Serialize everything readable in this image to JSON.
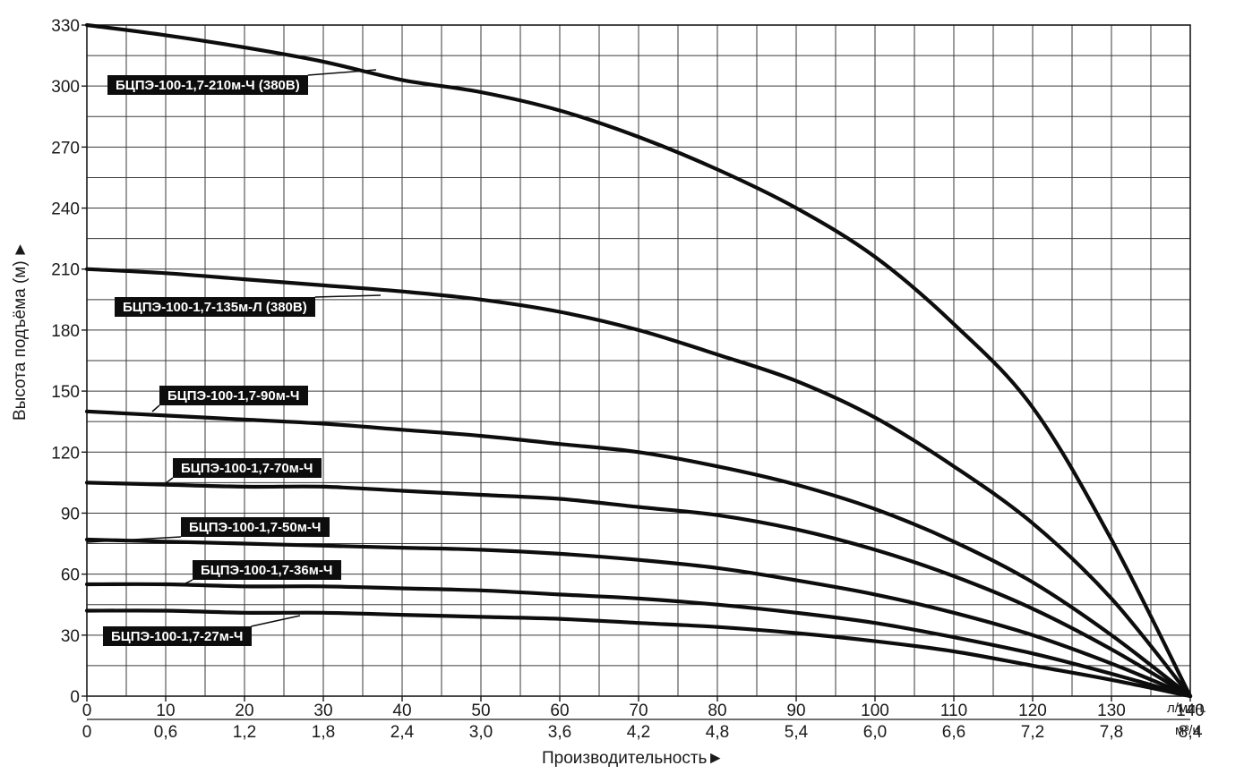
{
  "chart_data": {
    "type": "line",
    "ylabel": "Высота подъёма (м)",
    "xlabel": "Производительность",
    "ylim": [
      0,
      330
    ],
    "yticks": [
      0,
      30,
      60,
      90,
      120,
      150,
      180,
      210,
      240,
      270,
      300,
      330
    ],
    "xlim": [
      0,
      140
    ],
    "xticks": [
      0,
      10,
      20,
      30,
      40,
      50,
      60,
      70,
      80,
      90,
      100,
      110,
      120,
      130,
      140
    ],
    "x_unit": "л/мин.",
    "x2_ticks": [
      "0",
      "0,6",
      "1,2",
      "1,8",
      "2,4",
      "3,0",
      "3,6",
      "4,2",
      "4,8",
      "5,4",
      "6,0",
      "6,6",
      "7,2",
      "7,8",
      "8,4"
    ],
    "x2_unit": "м³/ч.",
    "grid": true,
    "series": [
      {
        "name": "БЦПЭ-100-1,7-210м-Ч (380В)",
        "points": [
          [
            0,
            330
          ],
          [
            10,
            325
          ],
          [
            20,
            319
          ],
          [
            30,
            312
          ],
          [
            40,
            303
          ],
          [
            50,
            297
          ],
          [
            60,
            288
          ],
          [
            70,
            275
          ],
          [
            80,
            259
          ],
          [
            90,
            240
          ],
          [
            100,
            216
          ],
          [
            110,
            183
          ],
          [
            120,
            142
          ],
          [
            130,
            77
          ],
          [
            140,
            0
          ]
        ]
      },
      {
        "name": "БЦПЭ-100-1,7-135м-Л (380В)",
        "points": [
          [
            0,
            210
          ],
          [
            10,
            208
          ],
          [
            20,
            205
          ],
          [
            30,
            202
          ],
          [
            40,
            199
          ],
          [
            50,
            195
          ],
          [
            60,
            189
          ],
          [
            70,
            180
          ],
          [
            80,
            168
          ],
          [
            90,
            155
          ],
          [
            100,
            137
          ],
          [
            110,
            113
          ],
          [
            120,
            85
          ],
          [
            130,
            48
          ],
          [
            140,
            0
          ]
        ]
      },
      {
        "name": "БЦПЭ-100-1,7-90м-Ч",
        "points": [
          [
            0,
            140
          ],
          [
            10,
            138
          ],
          [
            20,
            136
          ],
          [
            30,
            134
          ],
          [
            40,
            131
          ],
          [
            50,
            128
          ],
          [
            60,
            124
          ],
          [
            70,
            120
          ],
          [
            80,
            113
          ],
          [
            90,
            104
          ],
          [
            100,
            92
          ],
          [
            110,
            76
          ],
          [
            120,
            56
          ],
          [
            130,
            30
          ],
          [
            140,
            0
          ]
        ]
      },
      {
        "name": "БЦПЭ-100-1,7-70м-Ч",
        "points": [
          [
            0,
            105
          ],
          [
            10,
            104
          ],
          [
            20,
            103
          ],
          [
            30,
            103
          ],
          [
            40,
            101
          ],
          [
            50,
            99
          ],
          [
            60,
            97
          ],
          [
            70,
            93
          ],
          [
            80,
            89
          ],
          [
            90,
            82
          ],
          [
            100,
            72
          ],
          [
            110,
            59
          ],
          [
            120,
            43
          ],
          [
            130,
            23
          ],
          [
            140,
            0
          ]
        ]
      },
      {
        "name": "БЦПЭ-100-1,7-50м-Ч",
        "points": [
          [
            0,
            77
          ],
          [
            10,
            76
          ],
          [
            20,
            75
          ],
          [
            30,
            74
          ],
          [
            40,
            73
          ],
          [
            50,
            72
          ],
          [
            60,
            70
          ],
          [
            70,
            67
          ],
          [
            80,
            63
          ],
          [
            90,
            57
          ],
          [
            100,
            50
          ],
          [
            110,
            41
          ],
          [
            120,
            30
          ],
          [
            130,
            16
          ],
          [
            140,
            0
          ]
        ]
      },
      {
        "name": "БЦПЭ-100-1,7-36м-Ч",
        "points": [
          [
            0,
            55
          ],
          [
            10,
            55
          ],
          [
            20,
            54
          ],
          [
            30,
            54
          ],
          [
            40,
            53
          ],
          [
            50,
            52
          ],
          [
            60,
            50
          ],
          [
            70,
            48
          ],
          [
            80,
            45
          ],
          [
            90,
            41
          ],
          [
            100,
            36
          ],
          [
            110,
            29
          ],
          [
            120,
            21
          ],
          [
            130,
            11
          ],
          [
            140,
            0
          ]
        ]
      },
      {
        "name": "БЦПЭ-100-1,7-27м-Ч",
        "points": [
          [
            0,
            42
          ],
          [
            10,
            42
          ],
          [
            20,
            41
          ],
          [
            30,
            41
          ],
          [
            40,
            40
          ],
          [
            50,
            39
          ],
          [
            60,
            38
          ],
          [
            70,
            36
          ],
          [
            80,
            34
          ],
          [
            90,
            31
          ],
          [
            100,
            27
          ],
          [
            110,
            22
          ],
          [
            120,
            15
          ],
          [
            130,
            8
          ],
          [
            140,
            0
          ]
        ]
      }
    ]
  }
}
